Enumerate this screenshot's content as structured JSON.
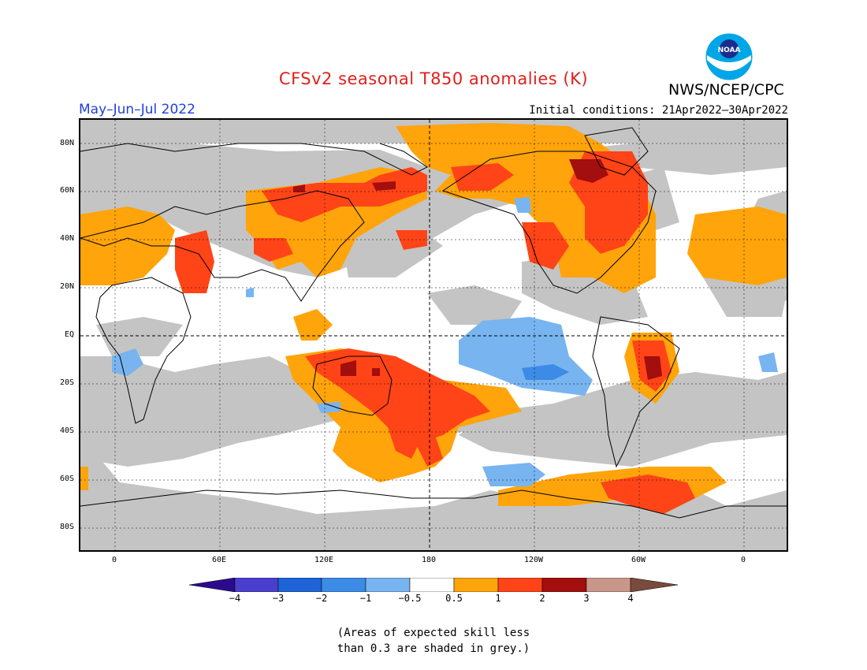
{
  "title": "CFSv2 seasonal T850 anomalies (K)",
  "organization": "NWS/NCEP/CPC",
  "logo_text": "NOAA",
  "period": "May–Jun–Jul 2022",
  "initial_conditions": "Initial conditions: 21Apr2022–30Apr2022",
  "lat_labels": [
    "80N",
    "60N",
    "40N",
    "20N",
    "EQ",
    "20S",
    "40S",
    "60S",
    "80S"
  ],
  "lon_labels": [
    "0",
    "60E",
    "120E",
    "180",
    "120W",
    "60W",
    "0"
  ],
  "colorbar": {
    "ticks": [
      "−4",
      "−3",
      "−2",
      "−1",
      "−0.5",
      "0.5",
      "1",
      "2",
      "3",
      "4"
    ],
    "colors": [
      "#2b0b8c",
      "#4a3fcc",
      "#1e64d6",
      "#3c8be6",
      "#78b4f0",
      "#ffffff",
      "#ffa40b",
      "#ff4418",
      "#a30e0e",
      "#c9978a",
      "#7a4a3c"
    ]
  },
  "note_line1": "(Areas of expected skill less",
  "note_line2": "than 0.3 are shaded in grey.)",
  "legend_colors": {
    "grey_low_skill": "#c4c4c4",
    "orange_0_5_to_1": "#ffa40b",
    "red_1_to_2": "#ff4418",
    "darkred_2_to_3": "#a30e0e",
    "lightblue_neg0_5_to_neg1": "#78b4f0",
    "blue_neg1_to_neg2": "#3c8be6"
  }
}
